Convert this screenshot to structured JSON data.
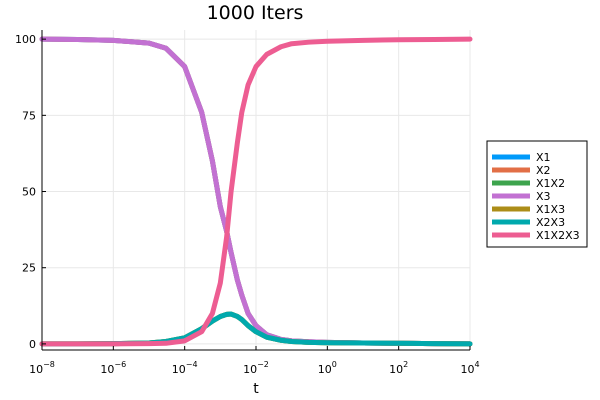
{
  "chart_data": {
    "type": "line",
    "title": "1000 Iters",
    "xlabel": "t",
    "ylabel": "",
    "x_scale": "log",
    "xlim": [
      1e-08,
      10000.0
    ],
    "ylim": [
      -2,
      103
    ],
    "x_ticks": [
      {
        "value": 1e-08,
        "base": "10",
        "exp": "−8"
      },
      {
        "value": 1e-06,
        "base": "10",
        "exp": "−6"
      },
      {
        "value": 0.0001,
        "base": "10",
        "exp": "−4"
      },
      {
        "value": 0.01,
        "base": "10",
        "exp": "−2"
      },
      {
        "value": 1,
        "base": "10",
        "exp": "0"
      },
      {
        "value": 100,
        "base": "10",
        "exp": "2"
      },
      {
        "value": 10000,
        "base": "10",
        "exp": "4"
      }
    ],
    "y_ticks": [
      0,
      25,
      50,
      75,
      100
    ],
    "y_tick_labels": [
      "0",
      "25",
      "50",
      "75",
      "100"
    ],
    "grid": true,
    "legend_position": "outer-right",
    "t": [
      1e-08,
      1e-07,
      1e-06,
      1e-05,
      3e-05,
      0.0001,
      0.0003,
      0.0006,
      0.001,
      0.0015,
      0.002,
      0.003,
      0.004,
      0.006,
      0.01,
      0.02,
      0.05,
      0.1,
      0.3,
      1,
      10,
      100,
      1000,
      10000
    ],
    "series": [
      {
        "name": "X1",
        "color": "#009AFA",
        "values": [
          100,
          99.9,
          99.6,
          98.7,
          97,
          91,
          76,
          60,
          45,
          37,
          30,
          21,
          16,
          10,
          6,
          3,
          1.5,
          1,
          0.7,
          0.5,
          0.3,
          0.2,
          0.1,
          0
        ]
      },
      {
        "name": "X2",
        "color": "#E26F46",
        "values": [
          100,
          99.9,
          99.6,
          98.7,
          97,
          91,
          76,
          60,
          45,
          37,
          30,
          21,
          16,
          10,
          6,
          3,
          1.5,
          1,
          0.7,
          0.5,
          0.3,
          0.2,
          0.1,
          0
        ]
      },
      {
        "name": "X1X2",
        "color": "#3DA44D",
        "values": [
          0,
          0,
          0.1,
          0.3,
          0.8,
          2,
          5,
          7.5,
          9,
          9.7,
          9.8,
          9,
          8,
          6,
          4,
          2.2,
          1.2,
          0.8,
          0.5,
          0.4,
          0.3,
          0.2,
          0.1,
          0
        ]
      },
      {
        "name": "X3",
        "color": "#C271D2",
        "values": [
          100,
          99.9,
          99.6,
          98.7,
          97,
          91,
          76,
          60,
          45,
          37,
          30,
          21,
          16,
          10,
          6,
          3,
          1.5,
          1,
          0.7,
          0.5,
          0.3,
          0.2,
          0.1,
          0
        ]
      },
      {
        "name": "X1X3",
        "color": "#AC8D18",
        "values": [
          0,
          0,
          0.1,
          0.3,
          0.8,
          2,
          5,
          7.5,
          9,
          9.7,
          9.8,
          9,
          8,
          6,
          4,
          2.2,
          1.2,
          0.8,
          0.5,
          0.4,
          0.3,
          0.2,
          0.1,
          0
        ]
      },
      {
        "name": "X2X3",
        "color": "#00A9AD",
        "values": [
          0,
          0,
          0.1,
          0.3,
          0.8,
          2,
          5,
          7.5,
          9,
          9.7,
          9.8,
          9,
          8,
          6,
          4,
          2.2,
          1.2,
          0.8,
          0.5,
          0.4,
          0.3,
          0.2,
          0.1,
          0
        ]
      },
      {
        "name": "X1X2X3",
        "color": "#ED5D92",
        "values": [
          0,
          0,
          0,
          0.1,
          0.2,
          1,
          4,
          10,
          20,
          35,
          50,
          66,
          76,
          85,
          91,
          95,
          97.5,
          98.5,
          99,
          99.3,
          99.6,
          99.8,
          99.9,
          100
        ]
      }
    ]
  }
}
